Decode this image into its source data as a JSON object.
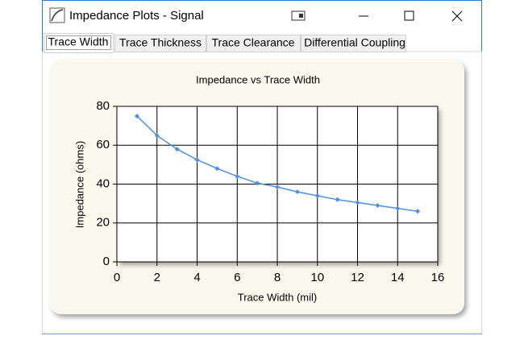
{
  "window": {
    "title": "Impedance Plots - Signal"
  },
  "tabs": [
    "Trace Width",
    "Trace Thickness",
    "Trace Clearance",
    "Differential Coupling"
  ],
  "chart_data": {
    "type": "line",
    "title": "Impedance vs Trace Width",
    "x_label": "Trace Width  (mil)",
    "y_label": "Impedance (ohms)",
    "x": [
      1,
      2,
      3,
      4,
      5,
      6,
      7,
      8,
      9,
      10,
      11,
      12,
      13,
      14,
      15
    ],
    "values": [
      75,
      65,
      58,
      52.5,
      48,
      44,
      40.5,
      38.5,
      36,
      34,
      32,
      30.5,
      29,
      27.5,
      26
    ],
    "color": "#4f8fe6",
    "xlim": [
      0,
      16
    ],
    "xticks": [
      0,
      2,
      4,
      6,
      8,
      10,
      12,
      14,
      16
    ],
    "ylim": [
      0,
      80
    ],
    "yticks": [
      0,
      20,
      40,
      60,
      80
    ],
    "grid": true
  }
}
